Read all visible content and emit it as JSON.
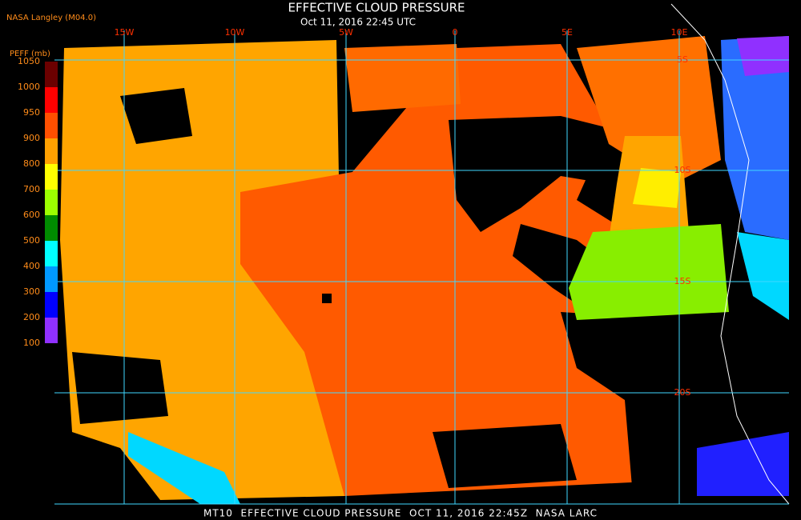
{
  "header": {
    "source": "NASA Langley (M04.0)",
    "title": "EFFECTIVE CLOUD PRESSURE",
    "subtitle": "Oct 11, 2016 22:45 UTC"
  },
  "colorbar": {
    "label": "PEFF (mb)",
    "ticks": [
      1050,
      1000,
      950,
      900,
      800,
      700,
      600,
      500,
      400,
      300,
      200,
      100
    ],
    "colors": [
      "#6b0000",
      "#ff0000",
      "#ff4f00",
      "#ffa000",
      "#ffff00",
      "#9cff00",
      "#008c00",
      "#00ffff",
      "#0098ff",
      "#0000ff",
      "#9030ff"
    ]
  },
  "map": {
    "longitude_labels": [
      "15W",
      "10W",
      "5W",
      "0",
      "5E",
      "10E"
    ],
    "latitude_labels": [
      "5S",
      "10S",
      "15S",
      "20S"
    ]
  },
  "footer": "MT10  EFFECTIVE CLOUD PRESSURE  OCT 11, 2016 22:45Z  NASA LARC"
}
